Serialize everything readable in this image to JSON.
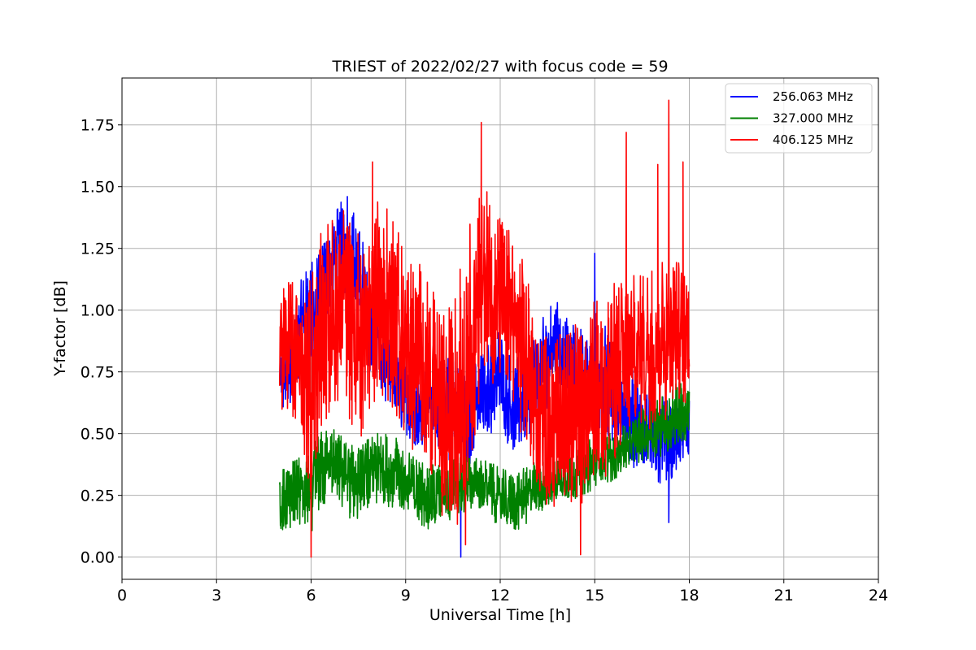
{
  "chart_data": {
    "type": "line",
    "title": "TRIEST of 2022/02/27 with focus code = 59",
    "xlabel": "Universal Time [h]",
    "ylabel": "Y-factor [dB]",
    "xlim": [
      0,
      24
    ],
    "ylim": [
      -0.09,
      1.94
    ],
    "x_ticks": [
      0,
      3,
      6,
      9,
      12,
      15,
      18,
      21,
      24
    ],
    "y_ticks": [
      0.0,
      0.25,
      0.5,
      0.75,
      1.0,
      1.25,
      1.5,
      1.75
    ],
    "y_tick_labels": [
      "0.00",
      "0.25",
      "0.50",
      "0.75",
      "1.00",
      "1.25",
      "1.50",
      "1.75"
    ],
    "grid": true,
    "legend_position": "top-right",
    "series": [
      {
        "name": "256.063 MHz",
        "color": "#0000ff",
        "x": [
          5.0,
          5.25,
          5.5,
          5.75,
          6.0,
          6.25,
          6.5,
          6.75,
          7.0,
          7.25,
          7.5,
          7.75,
          8.0,
          8.25,
          8.5,
          8.75,
          9.0,
          9.25,
          9.5,
          9.75,
          10.0,
          10.25,
          10.5,
          10.75,
          11.0,
          11.25,
          11.5,
          11.75,
          12.0,
          12.25,
          12.5,
          12.75,
          13.0,
          13.25,
          13.5,
          13.75,
          14.0,
          14.25,
          14.5,
          14.75,
          15.0,
          15.25,
          15.5,
          15.75,
          16.0,
          16.25,
          16.5,
          16.75,
          17.0,
          17.25,
          17.5,
          17.75,
          18.0
        ],
        "y_low": [
          0.55,
          0.6,
          0.65,
          0.75,
          0.7,
          0.85,
          0.95,
          1.0,
          1.05,
          1.0,
          0.9,
          0.8,
          0.7,
          0.6,
          0.55,
          0.5,
          0.5,
          0.45,
          0.45,
          0.5,
          0.45,
          0.4,
          0.35,
          0.3,
          0.35,
          0.45,
          0.5,
          0.5,
          0.55,
          0.45,
          0.4,
          0.45,
          0.5,
          0.55,
          0.6,
          0.7,
          0.65,
          0.6,
          0.6,
          0.55,
          0.5,
          0.45,
          0.45,
          0.4,
          0.4,
          0.35,
          0.35,
          0.35,
          0.3,
          0.3,
          0.3,
          0.35,
          0.4
        ],
        "y_high": [
          0.85,
          0.95,
          1.05,
          1.15,
          1.2,
          1.25,
          1.35,
          1.4,
          1.45,
          1.45,
          1.35,
          1.25,
          1.15,
          1.05,
          0.95,
          0.85,
          0.8,
          0.8,
          0.75,
          0.8,
          0.75,
          0.8,
          0.85,
          0.8,
          0.75,
          0.8,
          0.85,
          0.9,
          0.95,
          0.85,
          0.8,
          0.85,
          0.9,
          0.95,
          1.0,
          1.05,
          1.0,
          0.95,
          0.95,
          0.9,
          0.95,
          1.0,
          0.9,
          0.85,
          0.8,
          0.75,
          0.7,
          0.7,
          0.65,
          0.65,
          0.6,
          0.65,
          0.7
        ],
        "min_points": [
          [
            10.75,
            0.0
          ],
          [
            17.35,
            0.14
          ]
        ],
        "max_points": [
          [
            7.15,
            1.46
          ],
          [
            15.0,
            1.23
          ]
        ]
      },
      {
        "name": "327.000 MHz",
        "color": "#008000",
        "x": [
          5.0,
          5.25,
          5.5,
          5.75,
          6.0,
          6.25,
          6.5,
          6.75,
          7.0,
          7.25,
          7.5,
          7.75,
          8.0,
          8.25,
          8.5,
          8.75,
          9.0,
          9.25,
          9.5,
          9.75,
          10.0,
          10.25,
          10.5,
          10.75,
          11.0,
          11.25,
          11.5,
          11.75,
          12.0,
          12.25,
          12.5,
          12.75,
          13.0,
          13.25,
          13.5,
          13.75,
          14.0,
          14.25,
          14.5,
          14.75,
          15.0,
          15.25,
          15.5,
          15.75,
          16.0,
          16.25,
          16.5,
          16.75,
          17.0,
          17.25,
          17.5,
          17.75,
          18.0
        ],
        "y_low": [
          0.1,
          0.1,
          0.12,
          0.1,
          0.1,
          0.15,
          0.2,
          0.2,
          0.18,
          0.15,
          0.15,
          0.18,
          0.2,
          0.22,
          0.2,
          0.18,
          0.18,
          0.15,
          0.12,
          0.1,
          0.12,
          0.15,
          0.15,
          0.15,
          0.18,
          0.2,
          0.18,
          0.15,
          0.12,
          0.1,
          0.1,
          0.12,
          0.15,
          0.18,
          0.2,
          0.2,
          0.22,
          0.22,
          0.25,
          0.25,
          0.28,
          0.3,
          0.3,
          0.32,
          0.35,
          0.35,
          0.38,
          0.4,
          0.4,
          0.42,
          0.42,
          0.45,
          0.45
        ],
        "y_high": [
          0.35,
          0.38,
          0.4,
          0.42,
          0.45,
          0.5,
          0.55,
          0.52,
          0.5,
          0.48,
          0.45,
          0.48,
          0.5,
          0.52,
          0.5,
          0.48,
          0.45,
          0.42,
          0.4,
          0.38,
          0.38,
          0.4,
          0.4,
          0.42,
          0.42,
          0.42,
          0.4,
          0.38,
          0.36,
          0.35,
          0.35,
          0.36,
          0.38,
          0.4,
          0.4,
          0.42,
          0.42,
          0.45,
          0.45,
          0.48,
          0.5,
          0.5,
          0.52,
          0.55,
          0.55,
          0.58,
          0.6,
          0.62,
          0.65,
          0.68,
          0.7,
          0.72,
          0.72
        ]
      },
      {
        "name": "406.125 MHz",
        "color": "#ff0000",
        "x": [
          5.0,
          5.25,
          5.5,
          5.75,
          6.0,
          6.25,
          6.5,
          6.75,
          7.0,
          7.25,
          7.5,
          7.75,
          8.0,
          8.25,
          8.5,
          8.75,
          9.0,
          9.25,
          9.5,
          9.75,
          10.0,
          10.25,
          10.5,
          10.75,
          11.0,
          11.25,
          11.5,
          11.75,
          12.0,
          12.25,
          12.5,
          12.75,
          13.0,
          13.25,
          13.5,
          13.75,
          14.0,
          14.25,
          14.5,
          14.75,
          15.0,
          15.25,
          15.5,
          15.75,
          16.0,
          16.25,
          16.5,
          16.75,
          17.0,
          17.25,
          17.5,
          17.75,
          18.0
        ],
        "y_low": [
          0.6,
          0.55,
          0.5,
          0.45,
          0.2,
          0.45,
          0.55,
          0.6,
          0.65,
          0.5,
          0.45,
          0.55,
          0.6,
          0.65,
          0.6,
          0.55,
          0.45,
          0.4,
          0.45,
          0.35,
          0.2,
          0.15,
          0.1,
          0.15,
          0.3,
          0.5,
          0.65,
          0.7,
          0.7,
          0.65,
          0.55,
          0.45,
          0.35,
          0.25,
          0.2,
          0.2,
          0.2,
          0.18,
          0.2,
          0.2,
          0.25,
          0.3,
          0.35,
          0.4,
          0.45,
          0.5,
          0.5,
          0.5,
          0.55,
          0.55,
          0.6,
          0.6,
          0.65
        ],
        "y_high": [
          1.1,
          1.15,
          1.1,
          1.05,
          1.2,
          1.3,
          1.35,
          1.4,
          1.45,
          1.4,
          1.35,
          1.4,
          1.45,
          1.45,
          1.4,
          1.35,
          1.25,
          1.2,
          1.2,
          1.1,
          1.05,
          1.0,
          1.05,
          1.2,
          1.35,
          1.45,
          1.5,
          1.45,
          1.4,
          1.35,
          1.3,
          1.2,
          1.05,
          0.95,
          0.9,
          0.9,
          0.95,
          0.95,
          0.95,
          1.0,
          1.05,
          1.1,
          1.1,
          1.15,
          1.15,
          1.15,
          1.15,
          1.2,
          1.2,
          1.25,
          1.25,
          1.2,
          1.15
        ],
        "max_points": [
          [
            7.95,
            1.6
          ],
          [
            11.4,
            1.76
          ],
          [
            16.0,
            1.72
          ],
          [
            17.0,
            1.59
          ],
          [
            17.35,
            1.85
          ],
          [
            17.8,
            1.6
          ]
        ],
        "min_points": [
          [
            6.0,
            0.0
          ],
          [
            14.55,
            0.01
          ],
          [
            10.9,
            0.05
          ]
        ]
      }
    ]
  }
}
